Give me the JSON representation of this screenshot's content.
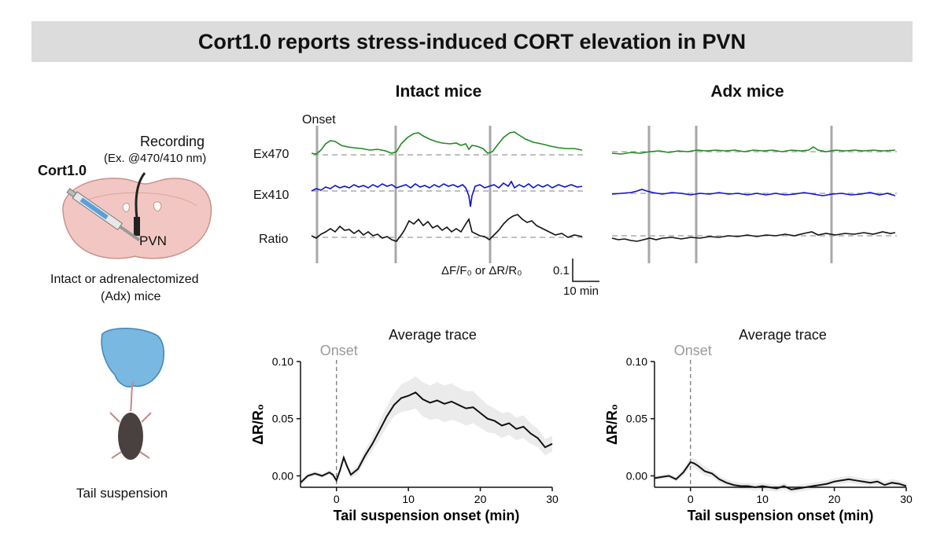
{
  "title": "Cort1.0 reports stress-induced CORT elevation in PVN",
  "left": {
    "recording_label": "Recording",
    "excitation_label": "(Ex. @470/410 nm)",
    "sensor_label": "Cort1.0",
    "region_label": "PVN",
    "mice_label_line1": "Intact or adrenalectomized",
    "mice_label_line2": "(Adx) mice",
    "tail_label": "Tail suspension"
  },
  "traces": {
    "intact_title": "Intact mice",
    "adx_title": "Adx mice",
    "onset_label": "Onset",
    "row_labels": [
      "Ex470",
      "Ex410",
      "Ratio"
    ],
    "scale_ylabel": "ΔF/F₀ or ΔR/R₀",
    "scale_value": "0.1",
    "scale_time": "10 min",
    "colors": {
      "ex470": "#1f8a1f",
      "ex410": "#1010c8",
      "ratio": "#111111",
      "onset": "#a8a8a8",
      "baseline": "#9a9a9a"
    }
  },
  "chart_data": [
    {
      "type": "line",
      "title": "Average trace",
      "onset_label": "Onset",
      "xlabel": "Tail suspension onset (min)",
      "ylabel": "ΔR/R₀",
      "xlim": [
        -5,
        30
      ],
      "ylim": [
        -0.01,
        0.1
      ],
      "xticks": [
        0,
        10,
        20,
        30
      ],
      "yticks": [
        0.0,
        0.05,
        0.1
      ],
      "ytick_labels": [
        "0.00",
        "0.05",
        "0.10"
      ],
      "onset_x": 0,
      "x": [
        -5,
        -4,
        -3,
        -2,
        -1,
        -0.5,
        0,
        0.5,
        1,
        1.5,
        2,
        3,
        4,
        5,
        6,
        7,
        8,
        9,
        10,
        11,
        12,
        13,
        14,
        15,
        16,
        17,
        18,
        19,
        20,
        21,
        22,
        23,
        24,
        25,
        26,
        27,
        28,
        29,
        30
      ],
      "mean": [
        -0.006,
        0.0,
        0.002,
        0.0,
        0.003,
        0.001,
        -0.004,
        0.005,
        0.016,
        0.008,
        0.001,
        0.006,
        0.018,
        0.028,
        0.04,
        0.052,
        0.062,
        0.068,
        0.07,
        0.073,
        0.067,
        0.064,
        0.066,
        0.063,
        0.065,
        0.062,
        0.059,
        0.06,
        0.055,
        0.05,
        0.048,
        0.044,
        0.046,
        0.041,
        0.043,
        0.037,
        0.033,
        0.025,
        0.028
      ],
      "band": [
        0.002,
        0.002,
        0.002,
        0.002,
        0.002,
        0.002,
        0.002,
        0.002,
        0.003,
        0.003,
        0.003,
        0.004,
        0.005,
        0.006,
        0.008,
        0.009,
        0.01,
        0.012,
        0.013,
        0.014,
        0.015,
        0.015,
        0.016,
        0.016,
        0.016,
        0.015,
        0.015,
        0.014,
        0.013,
        0.012,
        0.011,
        0.011,
        0.01,
        0.01,
        0.01,
        0.009,
        0.008,
        0.007,
        0.007
      ]
    },
    {
      "type": "line",
      "title": "Average trace",
      "onset_label": "Onset",
      "xlabel": "Tail suspension onset (min)",
      "ylabel": "ΔR/R₀",
      "xlim": [
        -5,
        30
      ],
      "ylim": [
        -0.01,
        0.1
      ],
      "xticks": [
        0,
        10,
        20,
        30
      ],
      "yticks": [
        0.0,
        0.05,
        0.1
      ],
      "ytick_labels": [
        "0.00",
        "0.05",
        "0.10"
      ],
      "onset_x": 0,
      "x": [
        -5,
        -4,
        -3,
        -2,
        -1,
        0,
        0.5,
        1,
        2,
        3,
        4,
        5,
        6,
        7,
        8,
        9,
        10,
        11,
        12,
        13,
        14,
        15,
        16,
        17,
        18,
        19,
        20,
        21,
        22,
        23,
        24,
        25,
        26,
        27,
        28,
        29,
        30
      ],
      "mean": [
        -0.002,
        -0.001,
        0.0,
        -0.003,
        0.003,
        0.012,
        0.011,
        0.009,
        0.004,
        0.002,
        -0.003,
        -0.006,
        -0.008,
        -0.009,
        -0.009,
        -0.01,
        -0.009,
        -0.01,
        -0.011,
        -0.009,
        -0.012,
        -0.011,
        -0.01,
        -0.009,
        -0.008,
        -0.007,
        -0.005,
        -0.004,
        -0.003,
        -0.004,
        -0.005,
        -0.006,
        -0.005,
        -0.008,
        -0.006,
        -0.007,
        -0.009
      ],
      "band": [
        0.002,
        0.002,
        0.002,
        0.002,
        0.003,
        0.004,
        0.004,
        0.004,
        0.004,
        0.003,
        0.003,
        0.003,
        0.003,
        0.003,
        0.003,
        0.003,
        0.003,
        0.003,
        0.003,
        0.003,
        0.003,
        0.003,
        0.003,
        0.003,
        0.003,
        0.003,
        0.003,
        0.003,
        0.003,
        0.003,
        0.003,
        0.003,
        0.003,
        0.003,
        0.003,
        0.003,
        0.003
      ]
    }
  ]
}
